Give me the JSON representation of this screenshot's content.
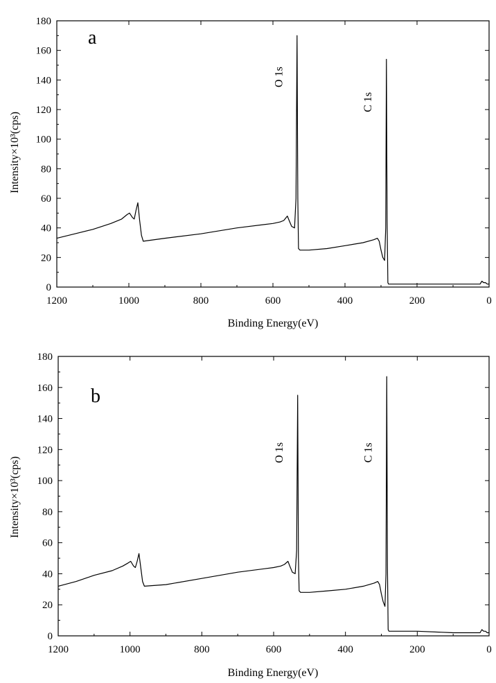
{
  "chart_data": [
    {
      "type": "line",
      "panel_label": "a",
      "xlabel": "Binding Energy(eV)",
      "ylabel": "Intensity×10³(cps)",
      "xlim": [
        1200,
        0
      ],
      "ylim": [
        0,
        180
      ],
      "x_reversed": true,
      "xticks": [
        1200,
        1000,
        800,
        600,
        400,
        200,
        0
      ],
      "yticks": [
        0,
        20,
        40,
        60,
        80,
        100,
        120,
        140,
        160,
        180
      ],
      "grid": false,
      "annotations": [
        {
          "text": "O 1s",
          "x": 532,
          "y": 142
        },
        {
          "text": "C 1s",
          "x": 285,
          "y": 125
        }
      ],
      "series": [
        {
          "x": [
            1200,
            1150,
            1100,
            1050,
            1020,
            1005,
            998,
            990,
            985,
            980,
            975,
            970,
            965,
            960,
            900,
            800,
            700,
            600,
            580,
            570,
            560,
            555,
            548,
            540,
            536,
            533,
            531,
            529,
            525,
            520,
            500,
            450,
            400,
            350,
            320,
            310,
            305,
            300,
            295,
            290,
            287,
            285,
            283,
            281,
            279,
            270,
            200,
            100,
            50,
            25,
            20,
            15,
            10,
            5,
            0
          ],
          "y": [
            33,
            36,
            39,
            43,
            46,
            49,
            50,
            47,
            46,
            52,
            57,
            45,
            35,
            31,
            33,
            36,
            40,
            43,
            44,
            45,
            48,
            45,
            41,
            40,
            60,
            170,
            60,
            26,
            25,
            25,
            25,
            26,
            28,
            30,
            32,
            33,
            31,
            25,
            20,
            18,
            40,
            154,
            45,
            3,
            2,
            2,
            2,
            2,
            2,
            2,
            4,
            3,
            3,
            2,
            2
          ]
        }
      ]
    },
    {
      "type": "line",
      "panel_label": "b",
      "xlabel": "Binding Energy(eV)",
      "ylabel": "Intensity×10³(cps)",
      "xlim": [
        1200,
        0
      ],
      "ylim": [
        0,
        180
      ],
      "x_reversed": true,
      "xticks": [
        1200,
        1000,
        800,
        600,
        400,
        200,
        0
      ],
      "yticks": [
        0,
        20,
        40,
        60,
        80,
        100,
        120,
        140,
        160,
        180
      ],
      "grid": false,
      "annotations": [
        {
          "text": "O 1s",
          "x": 532,
          "y": 118
        },
        {
          "text": "C 1s",
          "x": 285,
          "y": 118
        }
      ],
      "series": [
        {
          "x": [
            1200,
            1150,
            1100,
            1050,
            1020,
            1005,
            998,
            990,
            985,
            980,
            975,
            970,
            965,
            960,
            900,
            800,
            700,
            600,
            580,
            570,
            560,
            555,
            548,
            540,
            536,
            533,
            531,
            529,
            525,
            520,
            500,
            450,
            400,
            350,
            320,
            310,
            305,
            300,
            295,
            290,
            287,
            285,
            283,
            281,
            279,
            270,
            200,
            100,
            50,
            25,
            20,
            15,
            10,
            5,
            0
          ],
          "y": [
            32,
            35,
            39,
            42,
            45,
            47,
            48,
            45,
            44,
            48,
            53,
            44,
            35,
            32,
            33,
            37,
            41,
            44,
            45,
            46,
            48,
            45,
            41,
            40,
            55,
            155,
            50,
            29,
            28,
            28,
            28,
            29,
            30,
            32,
            34,
            35,
            33,
            27,
            22,
            19,
            40,
            167,
            45,
            4,
            3,
            3,
            3,
            2,
            2,
            2,
            4,
            3,
            3,
            2,
            2
          ]
        }
      ]
    }
  ]
}
